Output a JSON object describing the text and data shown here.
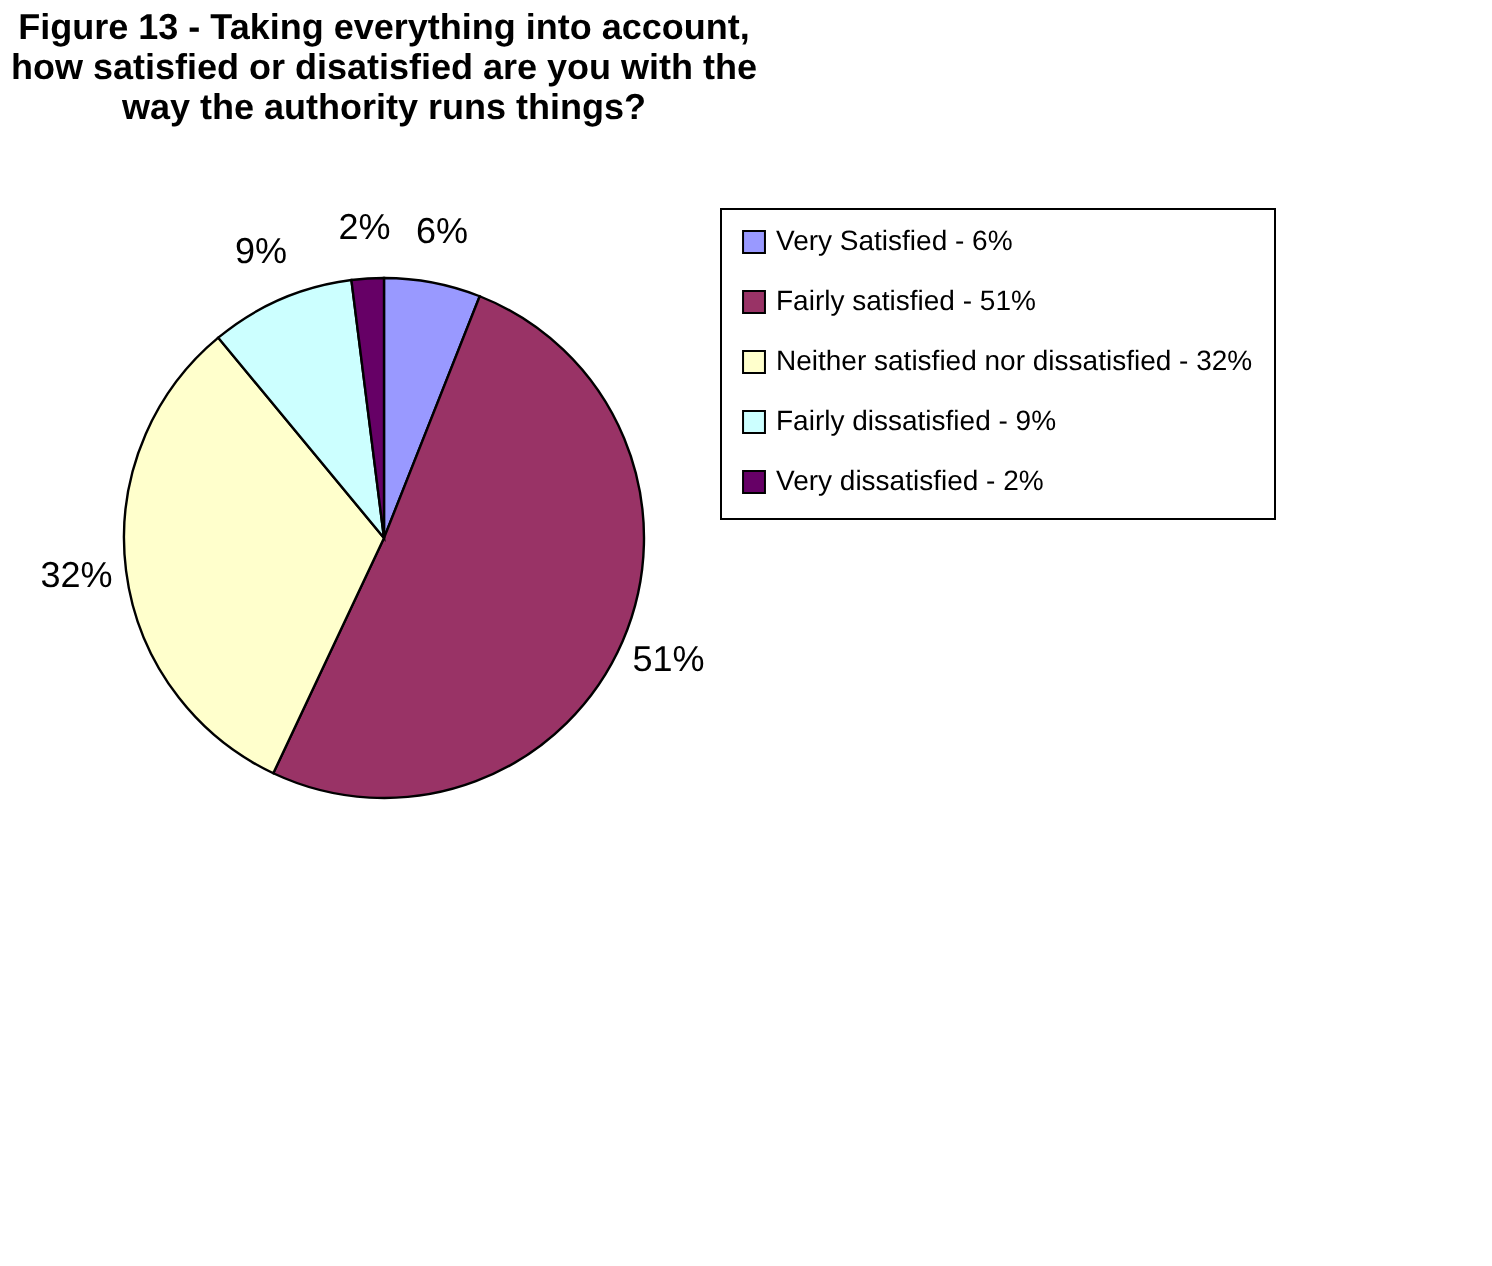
{
  "chart_data": {
    "type": "pie",
    "title": "Figure 13 - Taking everything into account, how satisfied or disatisfied are you with the way the authority runs things?",
    "categories": [
      "Very Satisfied - 6%",
      "Fairly satisfied - 51%",
      "Neither satisfied nor dissatisfied - 32%",
      "Fairly dissatisfied - 9%",
      "Very dissatisfied - 2%"
    ],
    "values": [
      6,
      51,
      32,
      9,
      2
    ],
    "value_labels": [
      "6%",
      "51%",
      "32%",
      "9%",
      "2%"
    ],
    "colors": [
      "#9999ff",
      "#993366",
      "#ffffcc",
      "#ccffff",
      "#660066"
    ],
    "legend": "right"
  }
}
